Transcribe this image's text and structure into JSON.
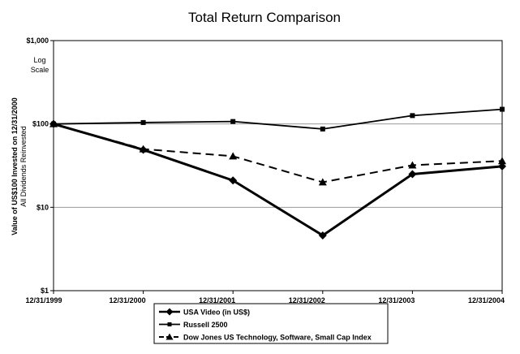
{
  "chart_data": {
    "type": "line",
    "title": "Total Return Comparison",
    "ylabel": "Value of US$100 Invested on 12/31/2000",
    "ylabel_sub": "All Dividends Reinvested",
    "annotation": [
      "Log",
      "Scale"
    ],
    "yscale": "log",
    "ylim": [
      1,
      1000
    ],
    "yticks": [
      {
        "value": 1,
        "label": "$1"
      },
      {
        "value": 10,
        "label": "$10"
      },
      {
        "value": 100,
        "label": "$100"
      },
      {
        "value": 1000,
        "label": "$1,000"
      }
    ],
    "categories": [
      "12/31/1999",
      "12/31/2000",
      "12/31/2001",
      "12/31/2002",
      "12/31/2003",
      "12/31/2004"
    ],
    "grid": true,
    "legend_position": "bottom",
    "series": [
      {
        "name": "USA Video (in US$)",
        "marker": "diamond",
        "style": "solid",
        "width": 3,
        "values": [
          100,
          49,
          21,
          4.6,
          25,
          31
        ]
      },
      {
        "name": "Russell 2500",
        "marker": "square",
        "style": "solid",
        "width": 1.8,
        "values": [
          100,
          104,
          107,
          87,
          126,
          150
        ]
      },
      {
        "name": "Dow Jones US Technology, Software, Small Cap Index",
        "marker": "triangle",
        "style": "dashed",
        "width": 2,
        "values": [
          100,
          50,
          41,
          20,
          32,
          36
        ]
      }
    ]
  }
}
